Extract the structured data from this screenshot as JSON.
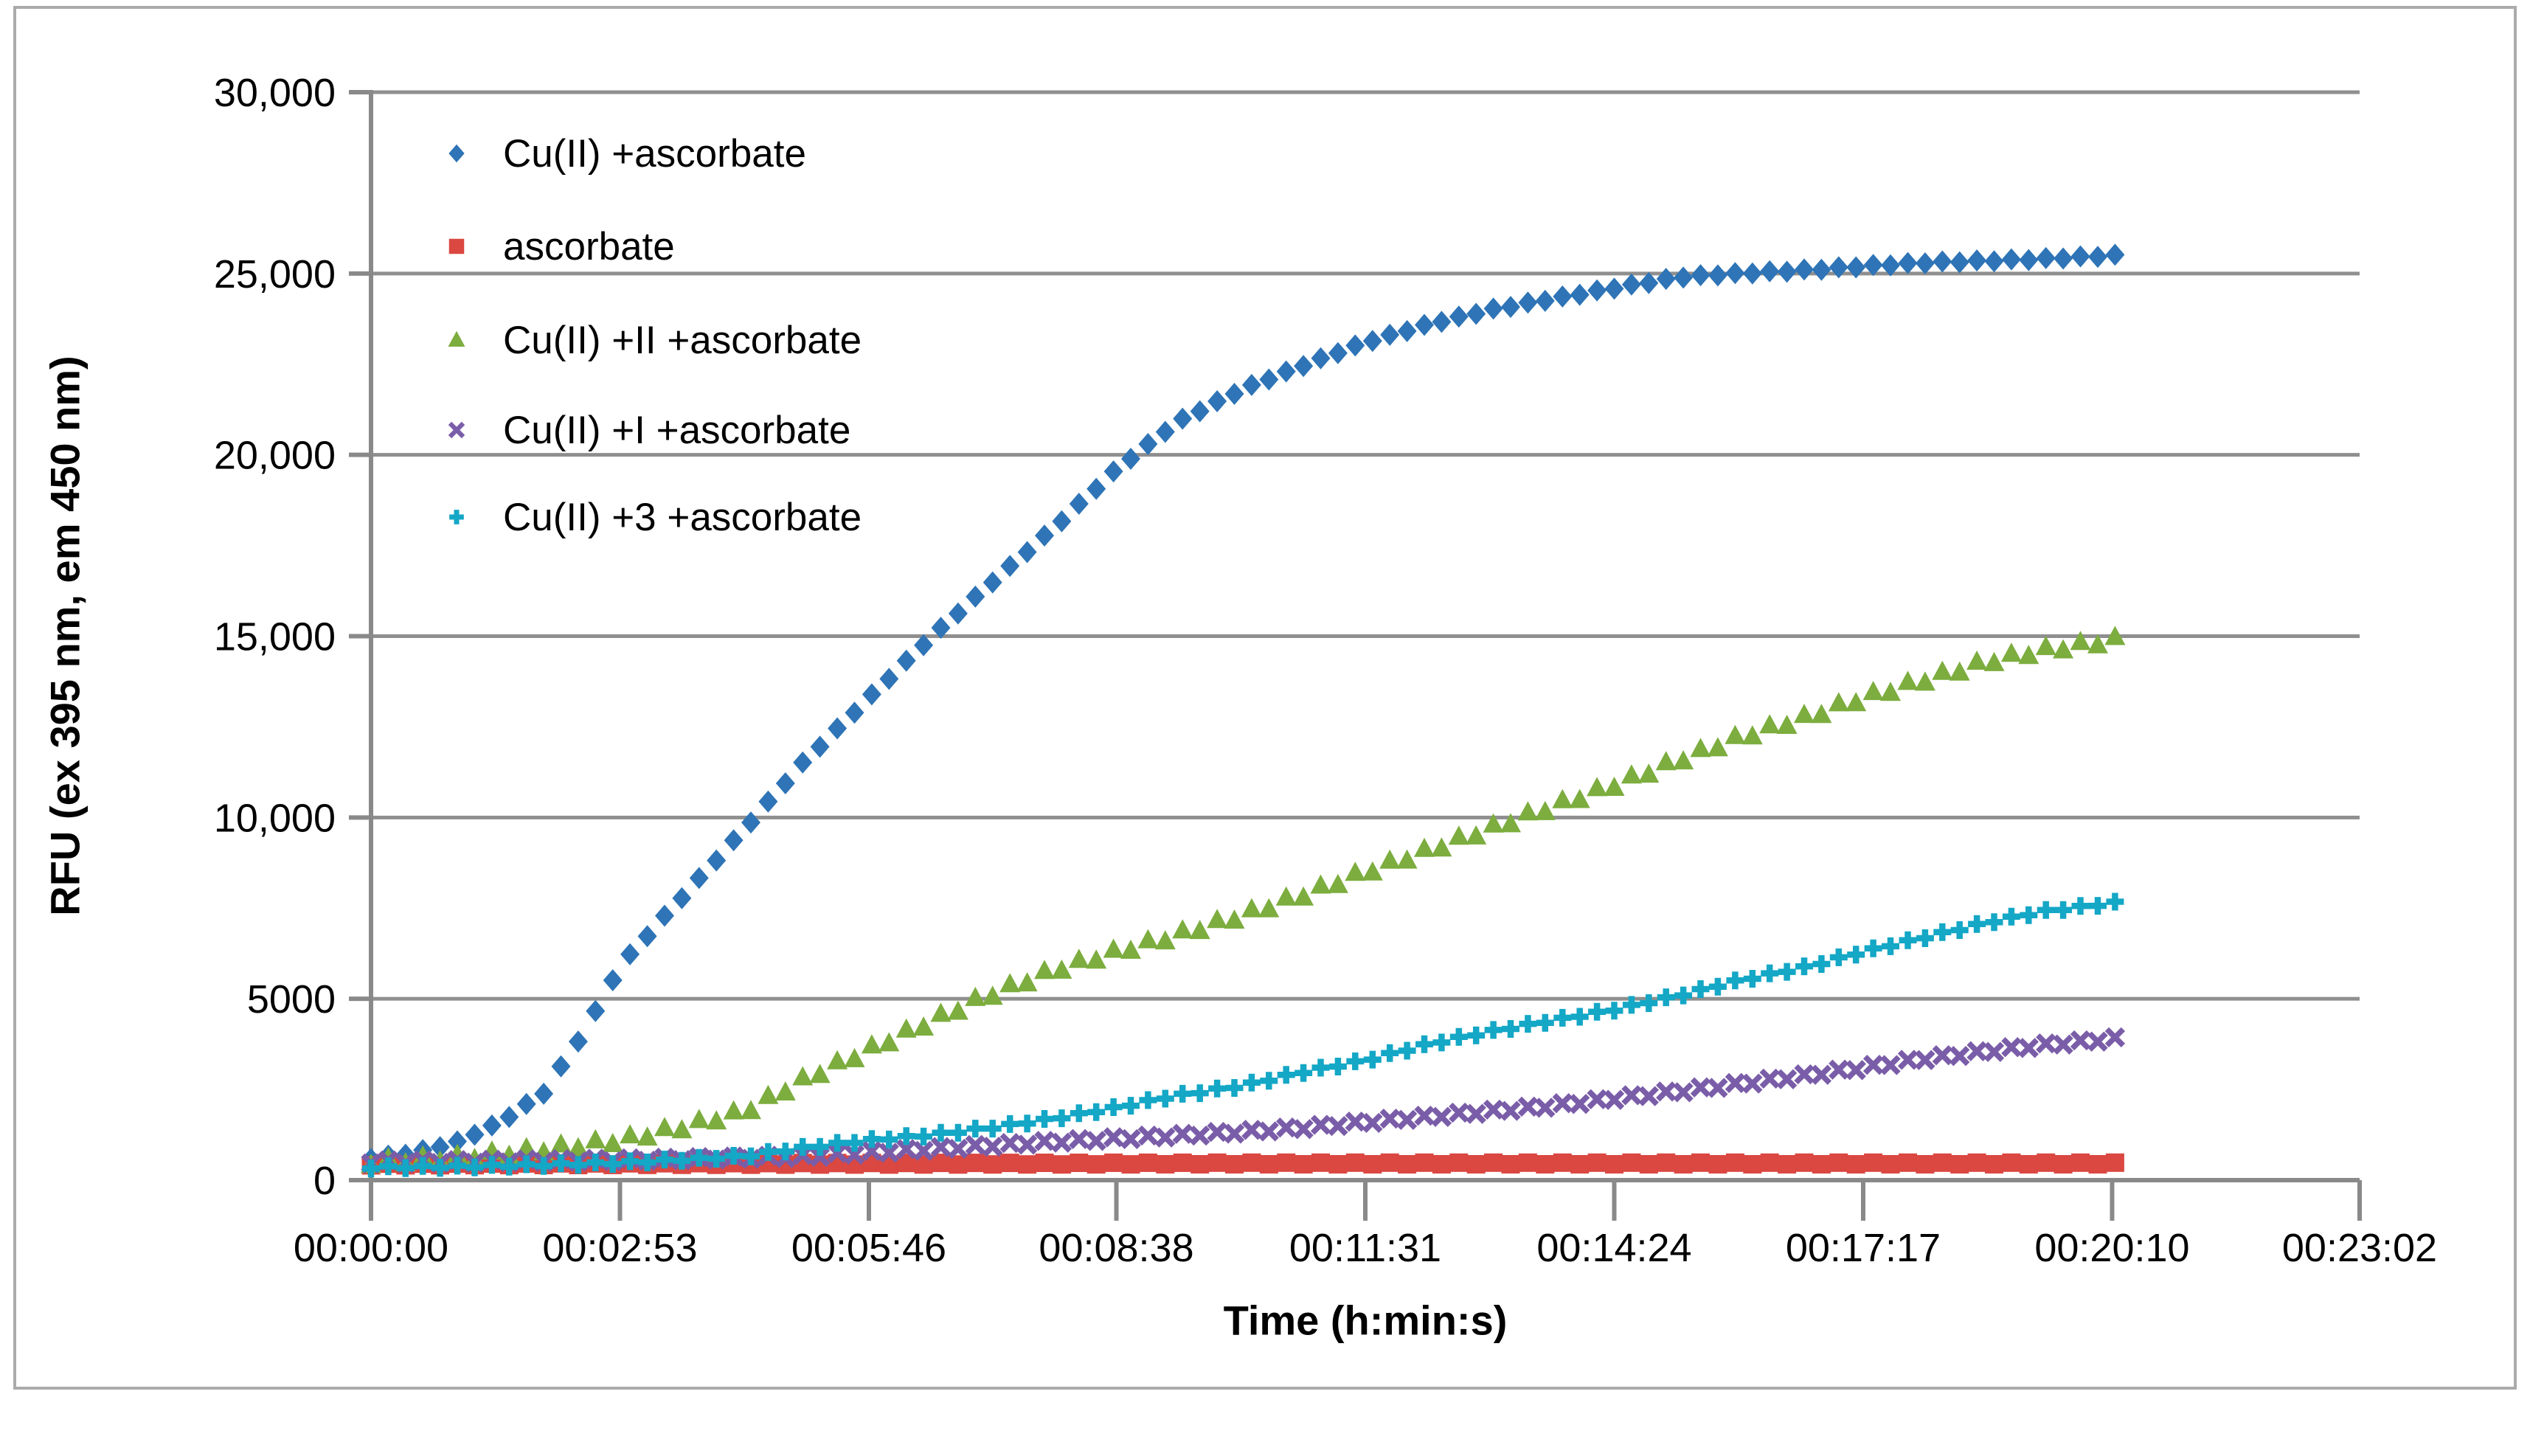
{
  "figure": {
    "background": "#ffffff",
    "border_color": "#ababab",
    "grid_color": "#8f8f8f",
    "axis_color": "#898989"
  },
  "chart_data": {
    "type": "scatter",
    "title": "",
    "xlabel": "Time (h:min:s)",
    "ylabel": "RFU (ex 395 nm, em 450 nm)",
    "xlim": [
      0,
      1382
    ],
    "ylim": [
      0,
      30000
    ],
    "grid": "horizontal",
    "legend_position": "top-left-inside",
    "marker_interval_seconds": 12,
    "data_end_seconds": 1212,
    "x_ticks": [
      {
        "t": 0,
        "label": "00:00:00"
      },
      {
        "t": 173,
        "label": "00:02:53"
      },
      {
        "t": 346,
        "label": "00:05:46"
      },
      {
        "t": 518,
        "label": "00:08:38"
      },
      {
        "t": 691,
        "label": "00:11:31"
      },
      {
        "t": 864,
        "label": "00:14:24"
      },
      {
        "t": 1037,
        "label": "00:17:17"
      },
      {
        "t": 1210,
        "label": "00:20:10"
      },
      {
        "t": 1382,
        "label": "00:23:02"
      }
    ],
    "y_ticks": [
      {
        "v": 0,
        "label": "0"
      },
      {
        "v": 5000,
        "label": "5000"
      },
      {
        "v": 10000,
        "label": "10,000"
      },
      {
        "v": 15000,
        "label": "15,000"
      },
      {
        "v": 20000,
        "label": "20,000"
      },
      {
        "v": 25000,
        "label": "25,000"
      },
      {
        "v": 30000,
        "label": "30,000"
      }
    ],
    "series": [
      {
        "name": "Cu(II) +ascorbate",
        "marker": "diamond",
        "color": "#2e74b6",
        "jitter": 18,
        "anchors": [
          [
            0,
            600
          ],
          [
            30,
            750
          ],
          [
            60,
            1050
          ],
          [
            90,
            1600
          ],
          [
            120,
            2400
          ],
          [
            150,
            4200
          ],
          [
            173,
            5900
          ],
          [
            200,
            7100
          ],
          [
            230,
            8400
          ],
          [
            260,
            9700
          ],
          [
            300,
            11500
          ],
          [
            346,
            13300
          ],
          [
            390,
            15000
          ],
          [
            432,
            16500
          ],
          [
            475,
            18000
          ],
          [
            518,
            19600
          ],
          [
            560,
            20900
          ],
          [
            605,
            21800
          ],
          [
            650,
            22500
          ],
          [
            691,
            23100
          ],
          [
            735,
            23600
          ],
          [
            778,
            24000
          ],
          [
            821,
            24300
          ],
          [
            864,
            24600
          ],
          [
            910,
            24900
          ],
          [
            950,
            25000
          ],
          [
            1000,
            25100
          ],
          [
            1037,
            25200
          ],
          [
            1080,
            25300
          ],
          [
            1123,
            25350
          ],
          [
            1160,
            25400
          ],
          [
            1212,
            25500
          ]
        ]
      },
      {
        "name": "ascorbate",
        "marker": "square",
        "color": "#db4741",
        "jitter": 22,
        "anchors": [
          [
            0,
            430
          ],
          [
            300,
            450
          ],
          [
            600,
            460
          ],
          [
            900,
            460
          ],
          [
            1212,
            460
          ]
        ]
      },
      {
        "name": "Cu(II) +II +ascorbate",
        "marker": "triangle",
        "color": "#7cad3e",
        "jitter": 80,
        "anchors": [
          [
            0,
            500
          ],
          [
            60,
            620
          ],
          [
            120,
            850
          ],
          [
            173,
            1100
          ],
          [
            215,
            1450
          ],
          [
            260,
            1900
          ],
          [
            302,
            2800
          ],
          [
            346,
            3600
          ],
          [
            390,
            4400
          ],
          [
            423,
            5000
          ],
          [
            475,
            5800
          ],
          [
            518,
            6300
          ],
          [
            555,
            6700
          ],
          [
            605,
            7300
          ],
          [
            650,
            7900
          ],
          [
            691,
            8500
          ],
          [
            735,
            9100
          ],
          [
            778,
            9700
          ],
          [
            821,
            10300
          ],
          [
            864,
            10900
          ],
          [
            910,
            11600
          ],
          [
            950,
            12200
          ],
          [
            1000,
            12800
          ],
          [
            1037,
            13300
          ],
          [
            1080,
            13800
          ],
          [
            1123,
            14300
          ],
          [
            1160,
            14600
          ],
          [
            1212,
            14900
          ]
        ]
      },
      {
        "name": "Cu(II) +I +ascorbate",
        "marker": "x",
        "color": "#7a5da8",
        "jitter": 38,
        "anchors": [
          [
            0,
            500
          ],
          [
            60,
            515
          ],
          [
            120,
            540
          ],
          [
            173,
            560
          ],
          [
            215,
            590
          ],
          [
            260,
            620
          ],
          [
            302,
            660
          ],
          [
            346,
            760
          ],
          [
            390,
            860
          ],
          [
            432,
            960
          ],
          [
            475,
            1060
          ],
          [
            518,
            1150
          ],
          [
            555,
            1220
          ],
          [
            605,
            1330
          ],
          [
            650,
            1450
          ],
          [
            691,
            1600
          ],
          [
            735,
            1750
          ],
          [
            778,
            1900
          ],
          [
            821,
            2050
          ],
          [
            864,
            2250
          ],
          [
            910,
            2450
          ],
          [
            950,
            2650
          ],
          [
            1000,
            2900
          ],
          [
            1037,
            3100
          ],
          [
            1080,
            3350
          ],
          [
            1123,
            3550
          ],
          [
            1160,
            3720
          ],
          [
            1212,
            3900
          ]
        ]
      },
      {
        "name": "Cu(II) +3 +ascorbate",
        "marker": "plus",
        "color": "#14a7c6",
        "jitter": 28,
        "anchors": [
          [
            0,
            350
          ],
          [
            60,
            370
          ],
          [
            120,
            420
          ],
          [
            173,
            480
          ],
          [
            215,
            560
          ],
          [
            260,
            660
          ],
          [
            302,
            900
          ],
          [
            346,
            1100
          ],
          [
            390,
            1250
          ],
          [
            432,
            1450
          ],
          [
            475,
            1700
          ],
          [
            518,
            2000
          ],
          [
            555,
            2300
          ],
          [
            605,
            2600
          ],
          [
            650,
            3000
          ],
          [
            691,
            3300
          ],
          [
            735,
            3750
          ],
          [
            778,
            4100
          ],
          [
            821,
            4400
          ],
          [
            864,
            4700
          ],
          [
            910,
            5100
          ],
          [
            950,
            5500
          ],
          [
            1000,
            5900
          ],
          [
            1037,
            6300
          ],
          [
            1080,
            6700
          ],
          [
            1123,
            7100
          ],
          [
            1160,
            7400
          ],
          [
            1212,
            7650
          ]
        ]
      }
    ]
  }
}
